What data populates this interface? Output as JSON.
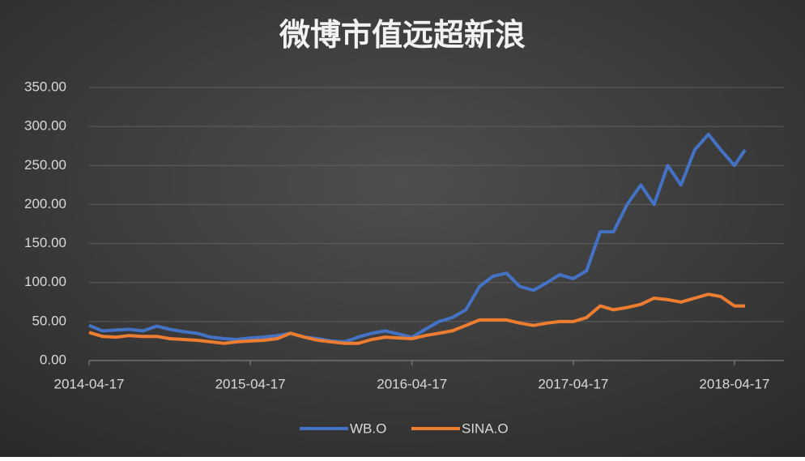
{
  "chart_data": {
    "type": "line",
    "title": "微博市值远超新浪",
    "x": [
      "2014-04-17",
      "2014-05-17",
      "2014-06-17",
      "2014-07-17",
      "2014-08-17",
      "2014-09-17",
      "2014-10-17",
      "2014-11-17",
      "2014-12-17",
      "2015-01-17",
      "2015-02-17",
      "2015-03-17",
      "2015-04-17",
      "2015-05-17",
      "2015-06-17",
      "2015-07-17",
      "2015-08-17",
      "2015-09-17",
      "2015-10-17",
      "2015-11-17",
      "2015-12-17",
      "2016-01-17",
      "2016-02-17",
      "2016-03-17",
      "2016-04-17",
      "2016-05-17",
      "2016-06-17",
      "2016-07-17",
      "2016-08-17",
      "2016-09-17",
      "2016-10-17",
      "2016-11-17",
      "2016-12-17",
      "2017-01-17",
      "2017-02-17",
      "2017-03-17",
      "2017-04-17",
      "2017-05-17",
      "2017-06-17",
      "2017-07-17",
      "2017-08-17",
      "2017-09-17",
      "2017-10-17",
      "2017-11-17",
      "2017-12-17",
      "2018-01-17",
      "2018-02-17",
      "2018-03-17",
      "2018-04-17",
      "2018-05-11"
    ],
    "series": [
      {
        "name": "WB.O",
        "color": "#4472c4",
        "values": [
          45,
          38,
          39,
          40,
          38,
          44,
          40,
          37,
          35,
          30,
          28,
          27,
          29,
          30,
          32,
          35,
          30,
          28,
          25,
          24,
          30,
          35,
          38,
          34,
          30,
          40,
          50,
          55,
          65,
          95,
          108,
          112,
          95,
          90,
          100,
          110,
          105,
          115,
          165,
          165,
          200,
          225,
          200,
          250,
          225,
          270,
          290,
          270,
          250,
          270
        ]
      },
      {
        "name": "SINA.O",
        "color": "#ed7d31",
        "values": [
          36,
          31,
          30,
          32,
          31,
          31,
          28,
          27,
          26,
          24,
          22,
          24,
          25,
          26,
          28,
          35,
          30,
          26,
          24,
          22,
          22,
          27,
          30,
          29,
          28,
          32,
          35,
          38,
          45,
          52,
          52,
          52,
          48,
          45,
          48,
          50,
          50,
          55,
          70,
          65,
          68,
          72,
          80,
          78,
          75,
          80,
          85,
          82,
          70,
          70
        ]
      }
    ],
    "xlim": [
      "2014-04-17",
      "2018-08-07"
    ],
    "xticks": [
      "2014-04-17",
      "2015-04-17",
      "2016-04-17",
      "2017-04-17",
      "2018-04-17"
    ],
    "ylim": [
      0,
      350
    ],
    "yticks": [
      {
        "value": 0,
        "label": "0.00"
      },
      {
        "value": 50,
        "label": "50.00"
      },
      {
        "value": 100,
        "label": "100.00"
      },
      {
        "value": 150,
        "label": "150.00"
      },
      {
        "value": 200,
        "label": "200.00"
      },
      {
        "value": 250,
        "label": "250.00"
      },
      {
        "value": 300,
        "label": "300.00"
      },
      {
        "value": 350,
        "label": "350.00"
      }
    ],
    "grid": true,
    "legend": "bottom"
  }
}
